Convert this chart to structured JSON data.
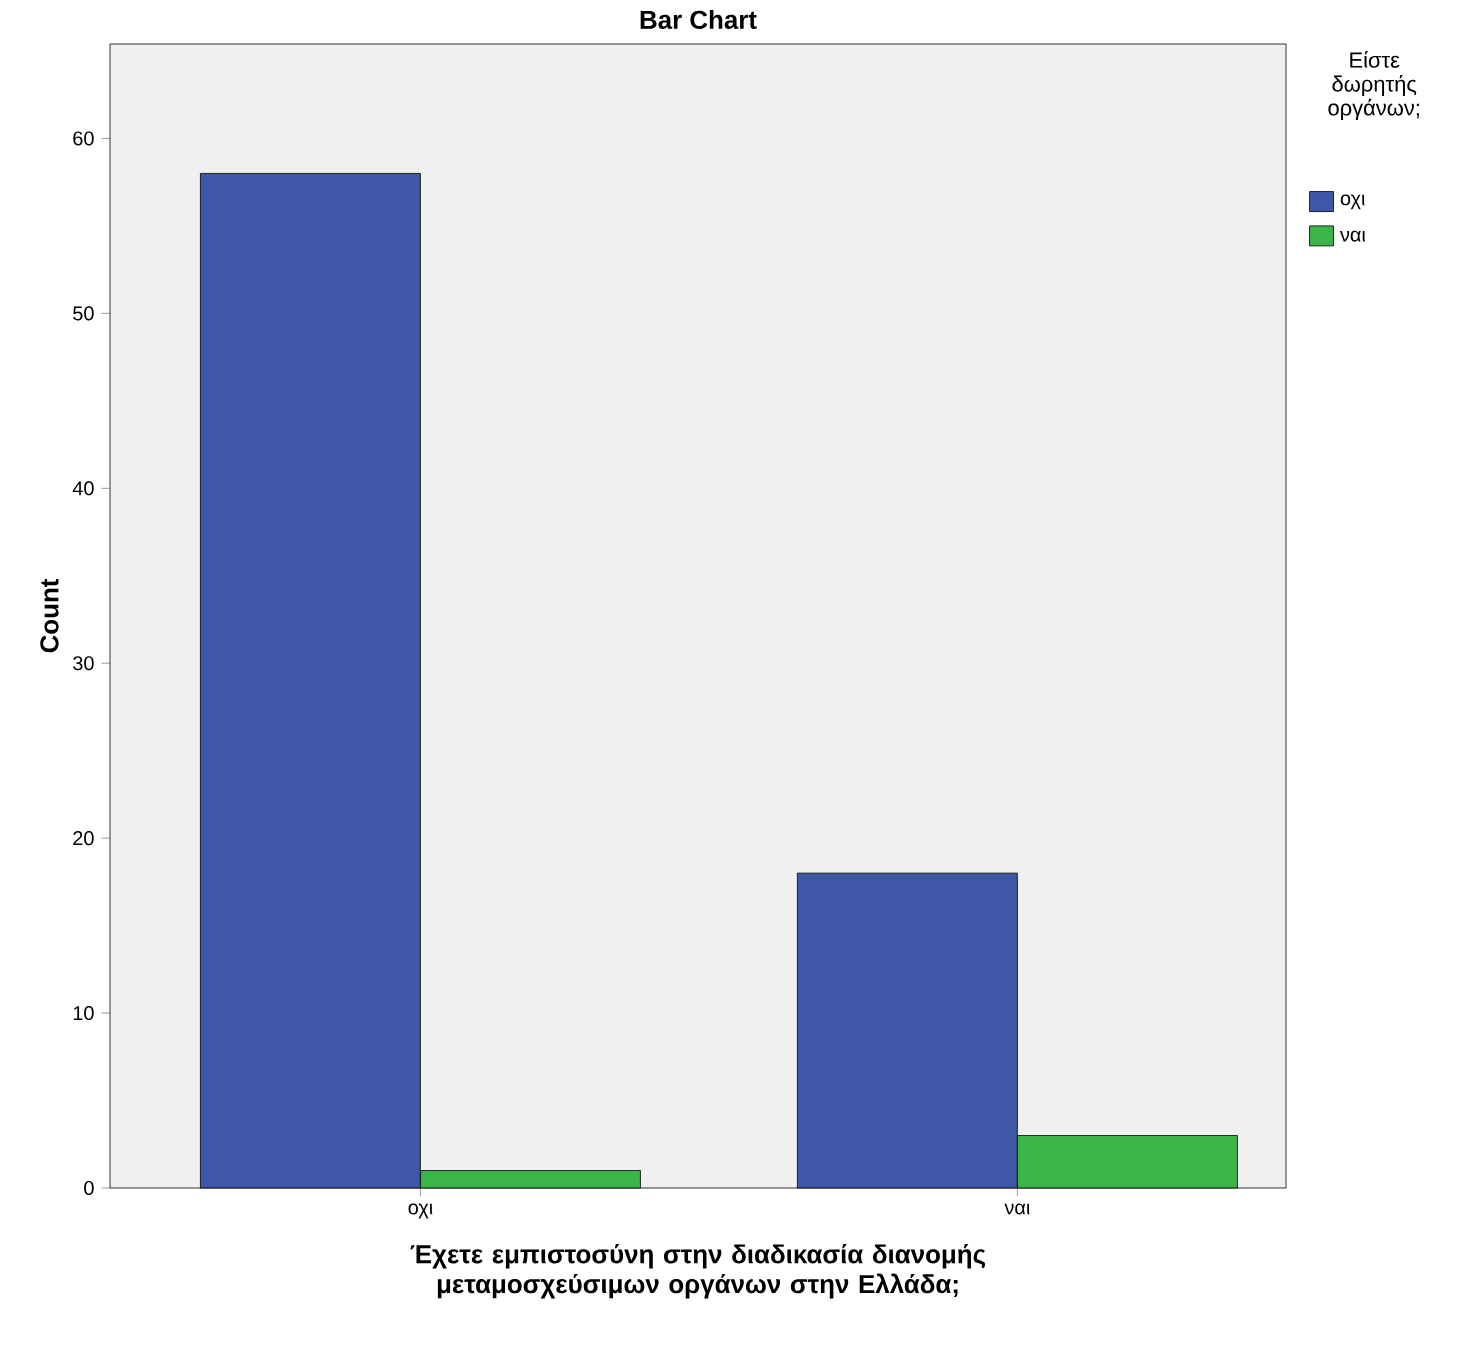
{
  "chart_data": {
    "type": "bar",
    "title": "Bar Chart",
    "xlabel": "Έχετε εμπιστοσύνη στην διαδικασία διανομής μεταμοσχεύσιμων οργάνων στην Ελλάδα;",
    "ylabel": "Count",
    "legend_title": "Είστε δωρητής οργάνων;",
    "categories": [
      "οχι",
      "ναι"
    ],
    "series": [
      {
        "name": "οχι",
        "color": "#3f57a7",
        "values": [
          58,
          18
        ]
      },
      {
        "name": "ναι",
        "color": "#3bb54a",
        "values": [
          1,
          3
        ]
      }
    ],
    "ylim": [
      0,
      65.4
    ],
    "yticks": [
      0,
      10,
      20,
      30,
      40,
      50,
      60
    ],
    "legend": "right"
  }
}
